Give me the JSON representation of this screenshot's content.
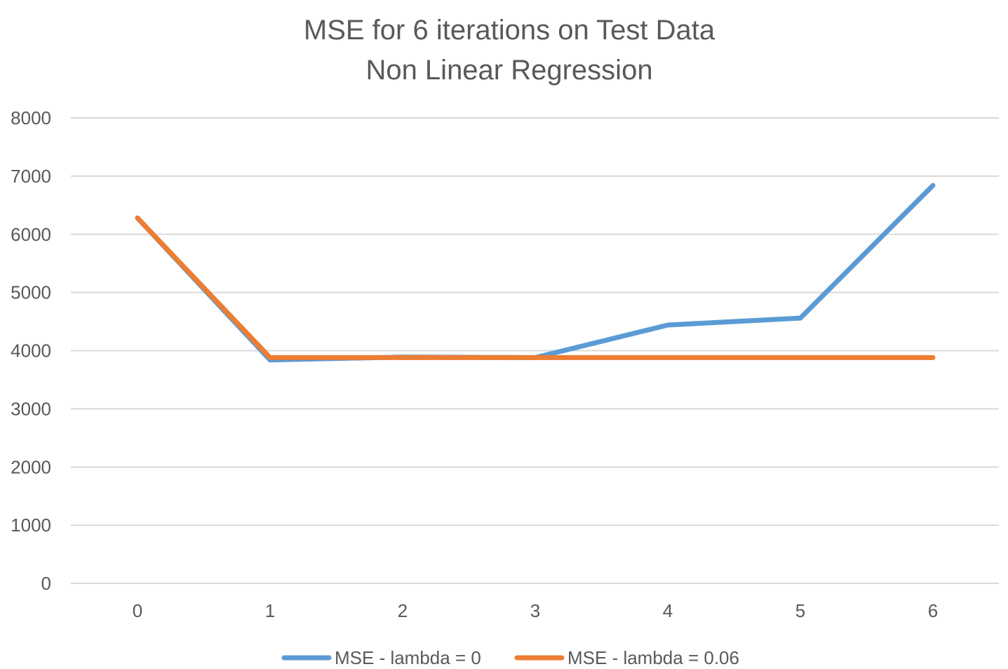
{
  "chart_data": {
    "type": "line",
    "title": "MSE for 6 iterations on Test Data",
    "subtitle": "Non Linear Regression",
    "xlabel": "",
    "ylabel": "",
    "categories": [
      "0",
      "1",
      "2",
      "3",
      "4",
      "5",
      "6"
    ],
    "x": [
      0,
      1,
      2,
      3,
      4,
      5,
      6
    ],
    "ylim": [
      0,
      8000
    ],
    "yticks": [
      0,
      1000,
      2000,
      3000,
      4000,
      5000,
      6000,
      7000,
      8000
    ],
    "grid": true,
    "legend_position": "bottom",
    "series": [
      {
        "name": "MSE - lambda = 0",
        "color": "#5b9bd5",
        "values": [
          6280,
          3840,
          3890,
          3880,
          4440,
          4560,
          6840
        ]
      },
      {
        "name": "MSE - lambda = 0.06",
        "color": "#ed7d31",
        "values": [
          6280,
          3880,
          3880,
          3880,
          3880,
          3880,
          3880
        ]
      }
    ]
  }
}
